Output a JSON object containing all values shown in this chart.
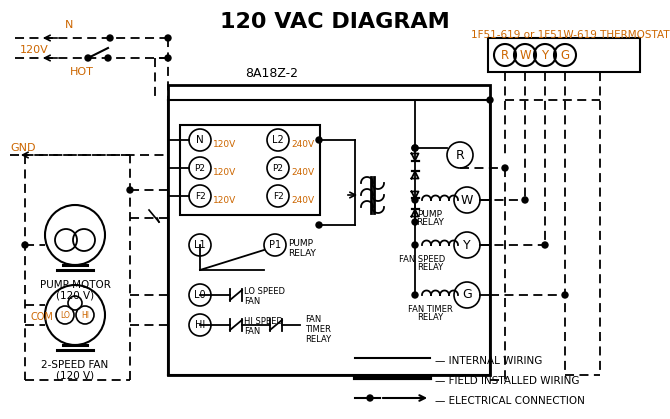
{
  "title": "120 VAC DIAGRAM",
  "title_color": "#1a1a1a",
  "thermostat_label": "1F51-619 or 1F51W-619 THERMOSTAT",
  "orange_color": "#cc6600",
  "module_label": "8A18Z-2",
  "bg_color": "#ffffff",
  "line_color": "#000000"
}
